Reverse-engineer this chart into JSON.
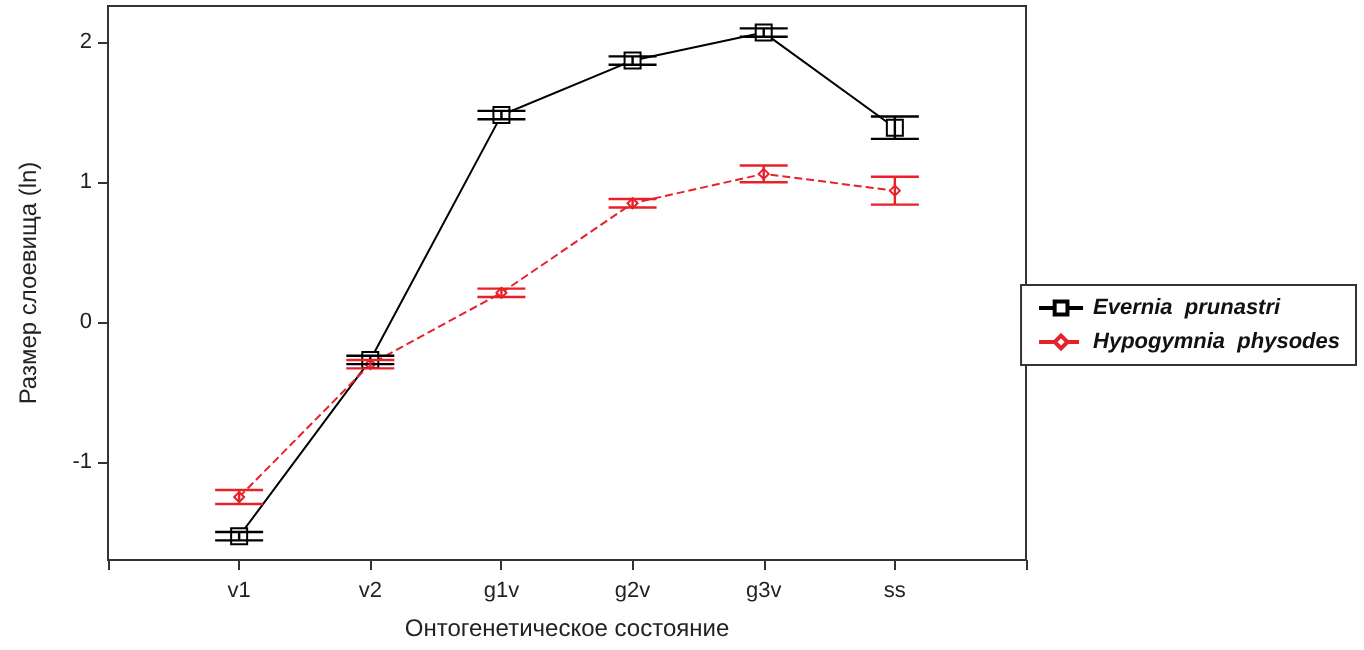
{
  "chart_data": {
    "type": "line",
    "xlabel": "Онтогенетическое состояние",
    "ylabel": "Размер слоевища (ln)",
    "categories": [
      "v1",
      "v2",
      "g1v",
      "g2v",
      "g3v",
      "ss"
    ],
    "ylim": [
      -1.7,
      2.26
    ],
    "yticks": [
      -1,
      0,
      1,
      2
    ],
    "grid": false,
    "legend": "right",
    "series": [
      {
        "name": "Evernia  prunastri",
        "color": "#000000",
        "marker": "square",
        "line_style": "solid",
        "values": [
          -1.53,
          -0.27,
          1.48,
          1.87,
          2.07,
          1.39
        ],
        "errors": [
          0.03,
          0.03,
          0.03,
          0.03,
          0.03,
          0.08
        ]
      },
      {
        "name": "Hypogymnia  physodes",
        "color": "#e8202a",
        "marker": "diamond",
        "line_style": "dashed",
        "values": [
          -1.25,
          -0.3,
          0.21,
          0.85,
          1.06,
          0.94
        ],
        "errors": [
          0.05,
          0.03,
          0.03,
          0.03,
          0.06,
          0.1
        ]
      }
    ]
  }
}
